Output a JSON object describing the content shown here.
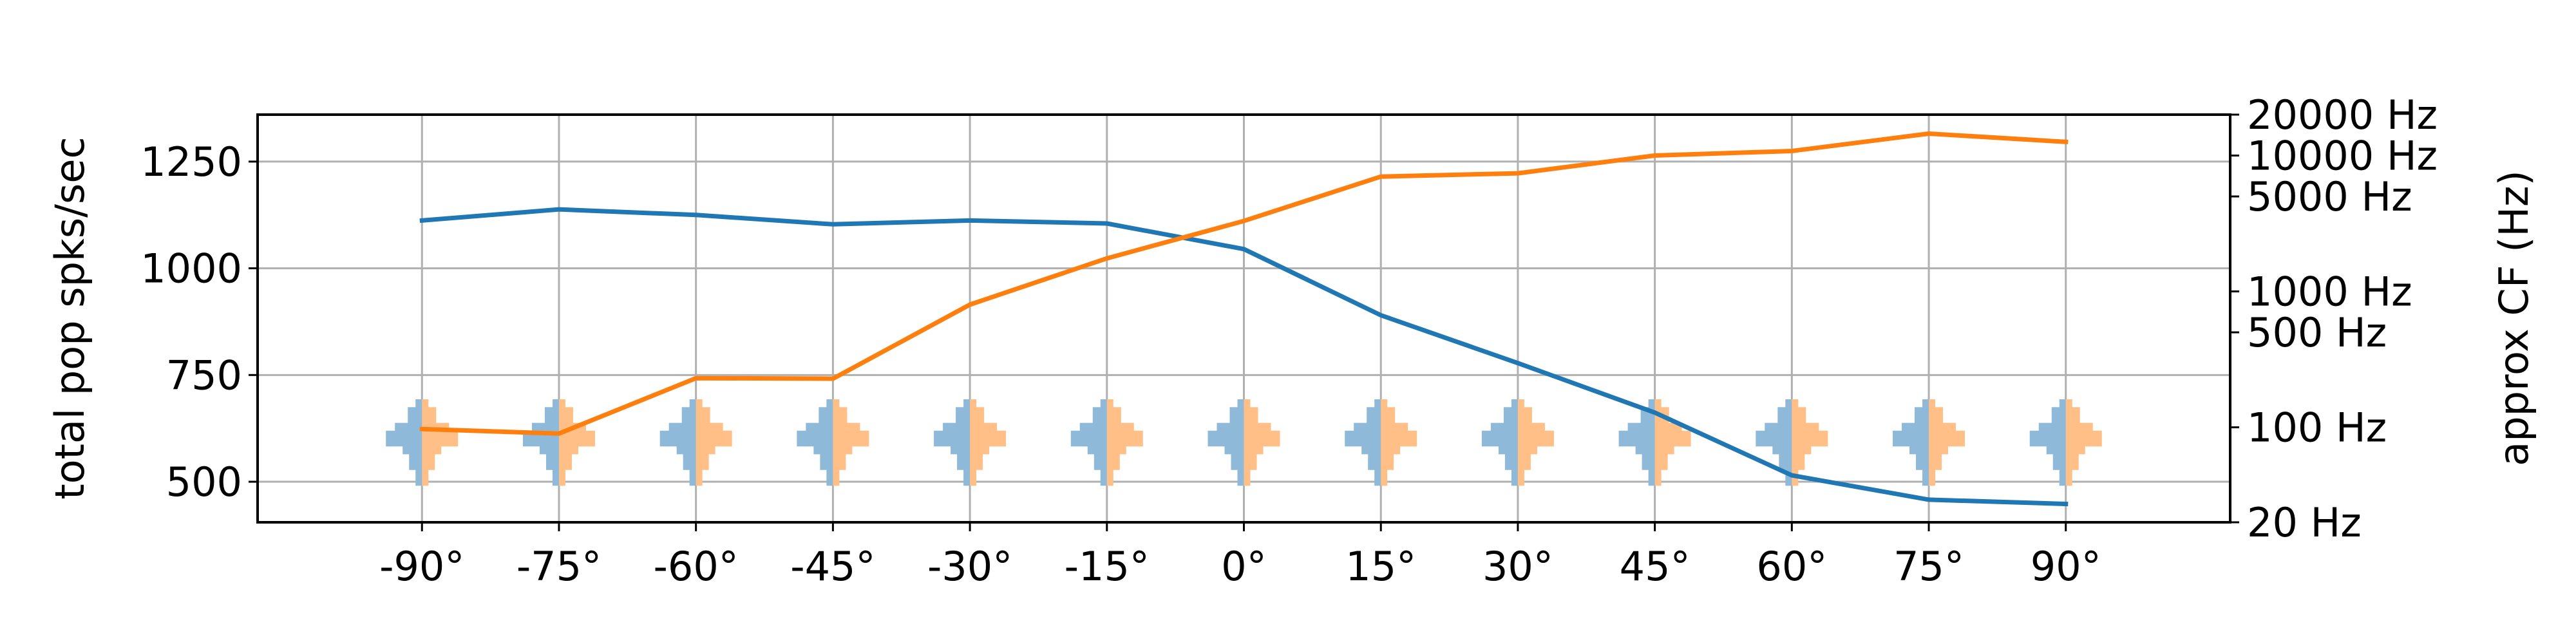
{
  "chart_data": {
    "type": "line",
    "x": [
      -90,
      -75,
      -60,
      -45,
      -30,
      -15,
      0,
      15,
      30,
      45,
      60,
      75,
      90
    ],
    "xticklabels": [
      "-90°",
      "-75°",
      "-60°",
      "-45°",
      "-30°",
      "-15°",
      "0°",
      "15°",
      "30°",
      "45°",
      "60°",
      "75°",
      "90°"
    ],
    "xlim": [
      -108,
      108
    ],
    "ylabel": "total pop spks/sec",
    "ylim": [
      405,
      1360
    ],
    "yticks": [
      500,
      750,
      1000,
      1250
    ],
    "yticklabels": [
      "500",
      "750",
      "1000",
      "1250"
    ],
    "y2label": "approx CF (Hz)",
    "y2_scale": "log",
    "y2lim": [
      20,
      20000
    ],
    "y2ticks": [
      20,
      100,
      500,
      1000,
      5000,
      10000,
      20000
    ],
    "y2ticklabels": [
      "20 Hz",
      "100 Hz",
      "500 Hz",
      "1000 Hz",
      "5000 Hz",
      "10000 Hz",
      "20000 Hz"
    ],
    "grid": true,
    "series": [
      {
        "axis": "left",
        "color": "#1f77b4",
        "values": [
          1112,
          1138,
          1125,
          1103,
          1112,
          1105,
          1045,
          890,
          778,
          662,
          515,
          458,
          448
        ]
      },
      {
        "axis": "right",
        "color": "#ff7f0e",
        "values": [
          97,
          90,
          230,
          228,
          800,
          1750,
          3300,
          7000,
          7400,
          10000,
          10800,
          14500,
          12600
        ]
      }
    ],
    "distribution_colors": [
      "#8fb9d8",
      "#ffbf86"
    ]
  }
}
